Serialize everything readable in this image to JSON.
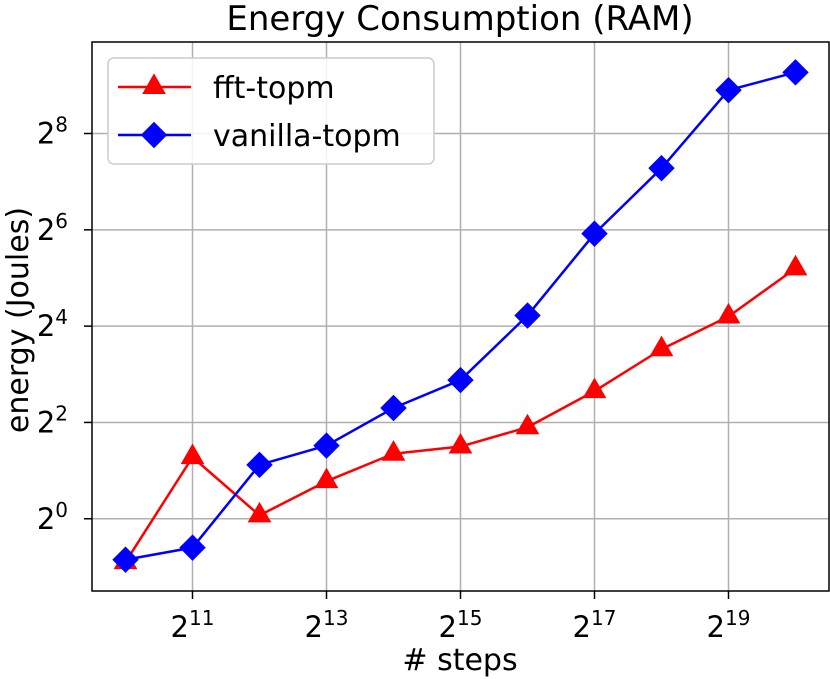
{
  "chart_data": {
    "type": "line",
    "title": "Energy Consumption (RAM)",
    "xlabel": "# steps",
    "ylabel": "energy (Joules)",
    "x_scale": "log2",
    "y_scale": "log2",
    "x_exponents": [
      10,
      11,
      12,
      13,
      14,
      15,
      16,
      17,
      18,
      19,
      20
    ],
    "x_ticks": [
      {
        "base": "2",
        "exp": "11",
        "value": 11
      },
      {
        "base": "2",
        "exp": "13",
        "value": 13
      },
      {
        "base": "2",
        "exp": "15",
        "value": 15
      },
      {
        "base": "2",
        "exp": "17",
        "value": 17
      },
      {
        "base": "2",
        "exp": "19",
        "value": 19
      }
    ],
    "y_ticks": [
      {
        "base": "2",
        "exp": "0",
        "value": 0
      },
      {
        "base": "2",
        "exp": "2",
        "value": 2
      },
      {
        "base": "2",
        "exp": "4",
        "value": 4
      },
      {
        "base": "2",
        "exp": "6",
        "value": 6
      },
      {
        "base": "2",
        "exp": "8",
        "value": 8
      }
    ],
    "xlim_log2": [
      9.5,
      20.5
    ],
    "ylim_log2": [
      -1.5,
      9.9
    ],
    "grid": true,
    "legend_position": "top-left",
    "series": [
      {
        "name": "fft-topm",
        "color": "#ff0000",
        "marker": "triangle",
        "log2_values": [
          -0.9,
          1.28,
          0.07,
          0.78,
          1.35,
          1.5,
          1.9,
          2.65,
          3.52,
          4.2,
          5.2
        ]
      },
      {
        "name": "vanilla-topm",
        "color": "#0000ff",
        "marker": "diamond",
        "log2_values": [
          -0.85,
          -0.6,
          1.12,
          1.52,
          2.3,
          2.88,
          4.22,
          5.92,
          7.28,
          8.9,
          9.27
        ]
      }
    ]
  }
}
